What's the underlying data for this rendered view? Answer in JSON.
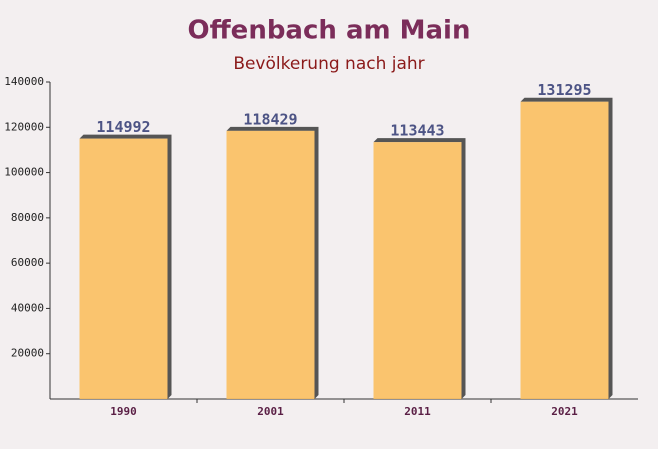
{
  "chart_data": {
    "type": "bar",
    "title": "Offenbach am Main",
    "subtitle": "Bevölkerung nach jahr",
    "categories": [
      "1990",
      "2001",
      "2011",
      "2021"
    ],
    "values": [
      114992,
      118429,
      113443,
      131295
    ],
    "color": "#fbbf5f",
    "ylim": [
      0,
      140000
    ],
    "yticks": [
      20000,
      40000,
      60000,
      80000,
      100000,
      120000,
      140000
    ]
  }
}
